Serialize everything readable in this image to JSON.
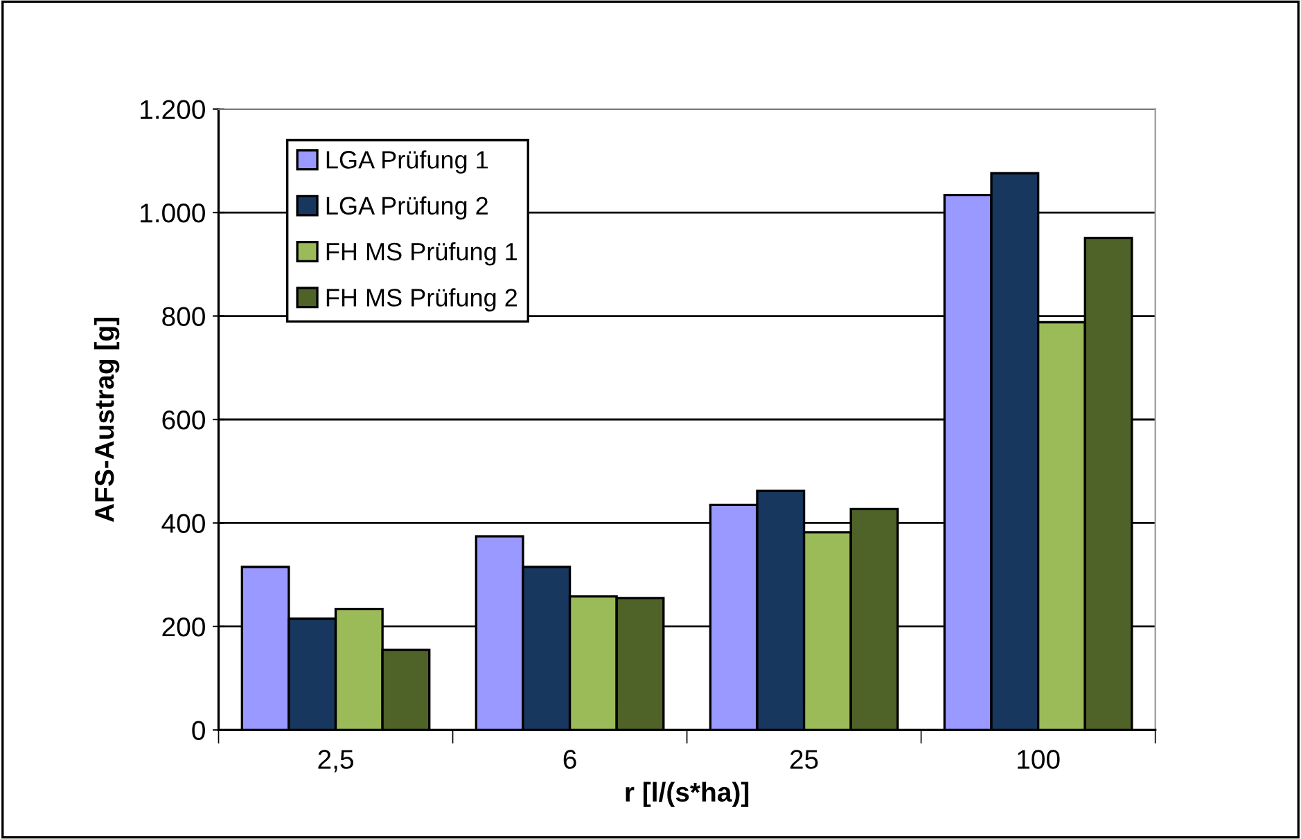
{
  "chart_data": {
    "type": "bar",
    "xlabel": "r [l/(s*ha)]",
    "ylabel": "AFS-Austrag [g]",
    "categories": [
      "2,5",
      "6",
      "25",
      "100"
    ],
    "series": [
      {
        "name": "LGA Prüfung 1",
        "color": "#9999ff",
        "values": [
          315,
          374,
          435,
          1034
        ]
      },
      {
        "name": "LGA Prüfung 2",
        "color": "#17375e",
        "values": [
          215,
          315,
          462,
          1076
        ]
      },
      {
        "name": "FH MS Prüfung 1",
        "color": "#9bbb59",
        "values": [
          234,
          258,
          382,
          788
        ]
      },
      {
        "name": "FH MS Prüfung 2",
        "color": "#4f6228",
        "values": [
          155,
          255,
          427,
          951
        ]
      }
    ],
    "ylim": [
      0,
      1200
    ],
    "yticks": [
      0,
      {
        "value": 200,
        "label": "200"
      },
      {
        "value": 400,
        "label": "400"
      },
      {
        "value": 600,
        "label": "600"
      },
      {
        "value": 800,
        "label": "800"
      },
      {
        "value": 1000,
        "label": "1.000"
      },
      {
        "value": 1200,
        "label": "1.200"
      }
    ],
    "grid": "y",
    "legend": "top left"
  }
}
